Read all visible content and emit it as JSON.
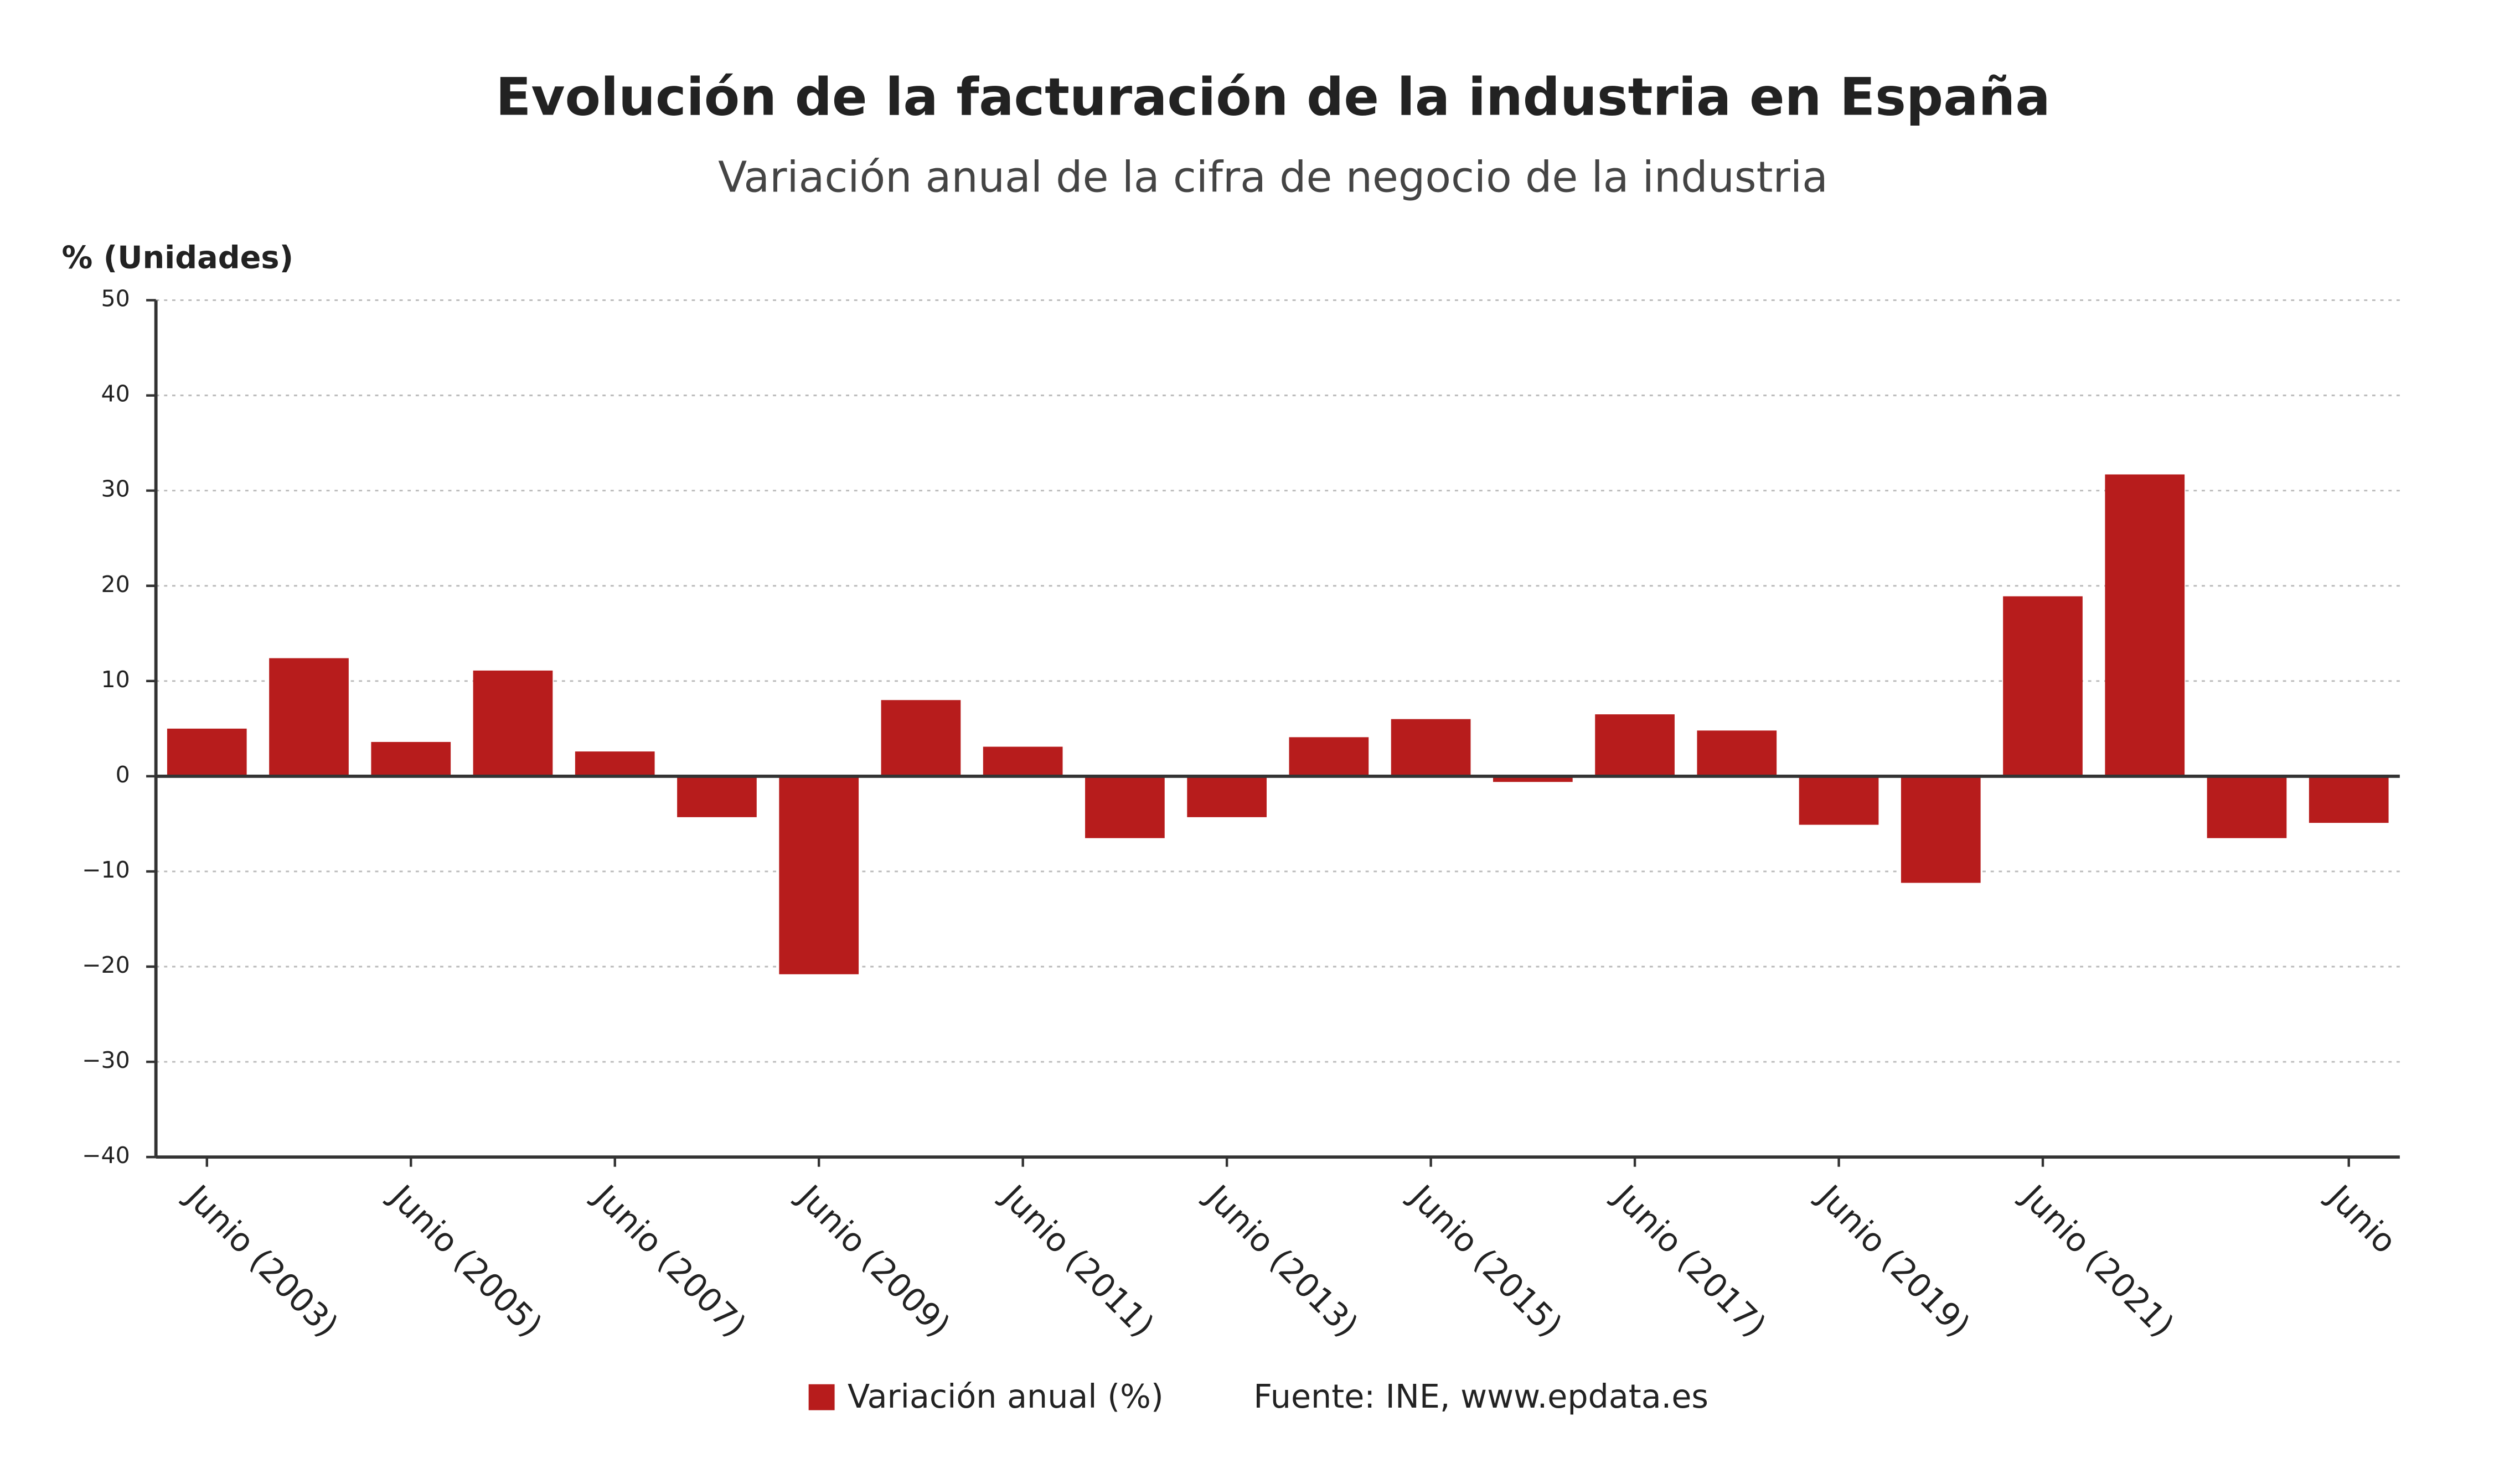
{
  "chart_data": {
    "type": "bar",
    "title": "Evolución de la facturación de la industria en España",
    "subtitle": "Variación anual de la cifra de negocio de la industria",
    "y_label": "% (Unidades)",
    "source": "Fuente: INE, www.epdata.es",
    "categories": [
      "Junio (2003)",
      null,
      "Junio (2005)",
      null,
      "Junio (2007)",
      null,
      "Junio (2009)",
      null,
      "Junio (2011)",
      null,
      "Junio (2013)",
      null,
      "Junio (2015)",
      null,
      "Junio (2017)",
      null,
      "Junio (2019)",
      null,
      "Junio (2021)",
      null,
      null,
      "Junio"
    ],
    "series": [
      {
        "name": "Variación anual (%)",
        "color": "#b71c1c",
        "values": [
          5.0,
          12.4,
          3.6,
          11.1,
          2.6,
          -4.3,
          -20.8,
          8.0,
          3.1,
          -6.5,
          -4.3,
          4.1,
          6.0,
          -0.6,
          6.5,
          4.8,
          -5.1,
          -11.2,
          18.9,
          31.7,
          -6.5,
          -4.9
        ]
      }
    ],
    "ylim": [
      -40,
      50
    ],
    "yticks": [
      {
        "value": -40,
        "label": "−40"
      },
      {
        "value": -30,
        "label": "−30"
      },
      {
        "value": -20,
        "label": "−20"
      },
      {
        "value": -10,
        "label": "−10"
      },
      0,
      10,
      20,
      30,
      40,
      50
    ],
    "grid": true
  }
}
